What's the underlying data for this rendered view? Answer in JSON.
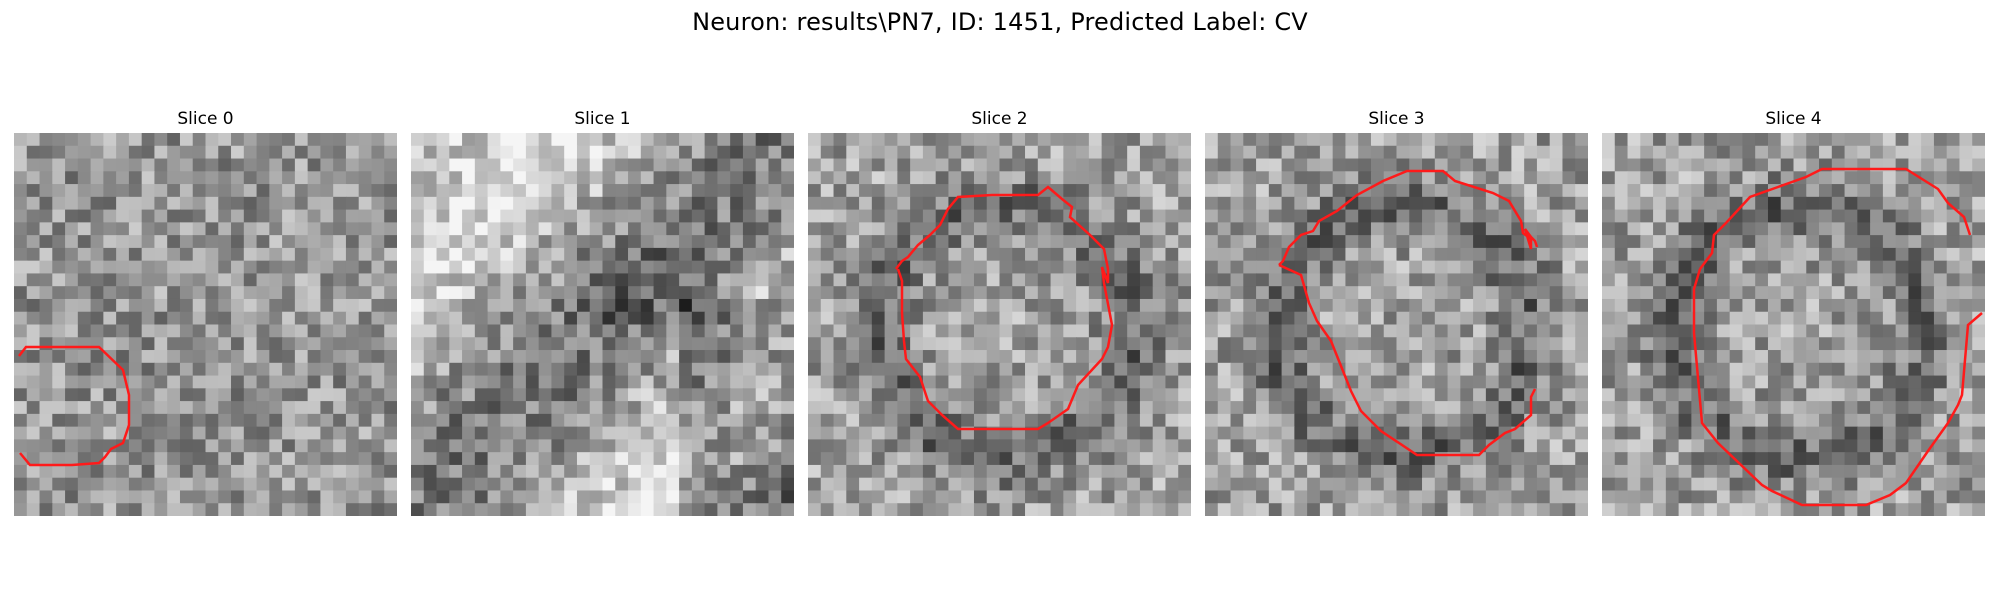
{
  "figure": {
    "title": "Neuron: results\\PN7, ID: 1451, Predicted Label: CV"
  },
  "panels": [
    {
      "title": "Slice 0"
    },
    {
      "title": "Slice 1"
    },
    {
      "title": "Slice 2"
    },
    {
      "title": "Slice 3"
    },
    {
      "title": "Slice 4"
    }
  ],
  "colors": {
    "contour": "#ff1a1a",
    "background": "#ffffff"
  }
}
